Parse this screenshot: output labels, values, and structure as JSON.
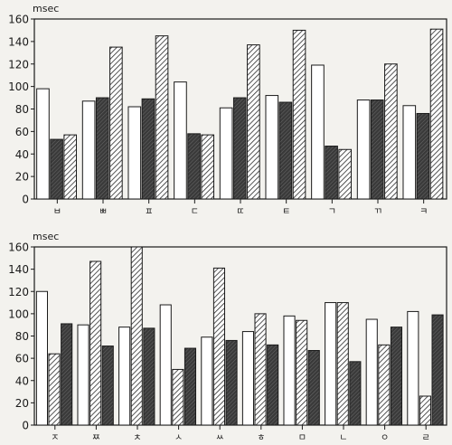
{
  "chart_data": [
    {
      "type": "bar",
      "ylabel": "msec",
      "ylim": [
        0,
        160
      ],
      "yticks": [
        0,
        20,
        40,
        60,
        80,
        100,
        120,
        140,
        160
      ],
      "grid": false,
      "categories": [
        "ㅂ",
        "ㅃ",
        "ㅍ",
        "ㄷ",
        "ㄸ",
        "ㅌ",
        "ㄱ",
        "ㄲ",
        "ㅋ"
      ],
      "series": [
        {
          "style": "white",
          "values": [
            98,
            87,
            82,
            104,
            81,
            92,
            119,
            88,
            83
          ]
        },
        {
          "style": "dark",
          "values": [
            53,
            90,
            89,
            58,
            90,
            86,
            47,
            88,
            76
          ]
        },
        {
          "style": "hatched",
          "values": [
            57,
            135,
            145,
            57,
            137,
            150,
            44,
            120,
            151
          ]
        }
      ],
      "order": [
        "white",
        "dark",
        "hatched"
      ]
    },
    {
      "type": "bar",
      "ylabel": "msec",
      "ylim": [
        0,
        160
      ],
      "yticks": [
        0,
        20,
        40,
        60,
        80,
        100,
        120,
        140,
        160
      ],
      "grid": false,
      "categories": [
        "ㅈ",
        "ㅉ",
        "ㅊ",
        "ㅅ",
        "ㅆ",
        "ㅎ",
        "ㅁ",
        "ㄴ",
        "ㅇ",
        "ㄹ"
      ],
      "series": [
        {
          "style": "white",
          "values": [
            120,
            90,
            88,
            108,
            79,
            84,
            98,
            110,
            95,
            102
          ]
        },
        {
          "style": "dark",
          "values": [
            91,
            71,
            87,
            69,
            76,
            72,
            67,
            57,
            88,
            99
          ]
        },
        {
          "style": "hatched",
          "values": [
            64,
            147,
            160,
            50,
            141,
            100,
            94,
            110,
            72,
            26
          ]
        }
      ],
      "order": [
        "white",
        "hatched",
        "dark"
      ]
    }
  ],
  "colors": {
    "dark": "#3a3a3a",
    "hatch": "#2a2a2a",
    "white": "#ffffff",
    "axis": "#1a1a1a"
  }
}
